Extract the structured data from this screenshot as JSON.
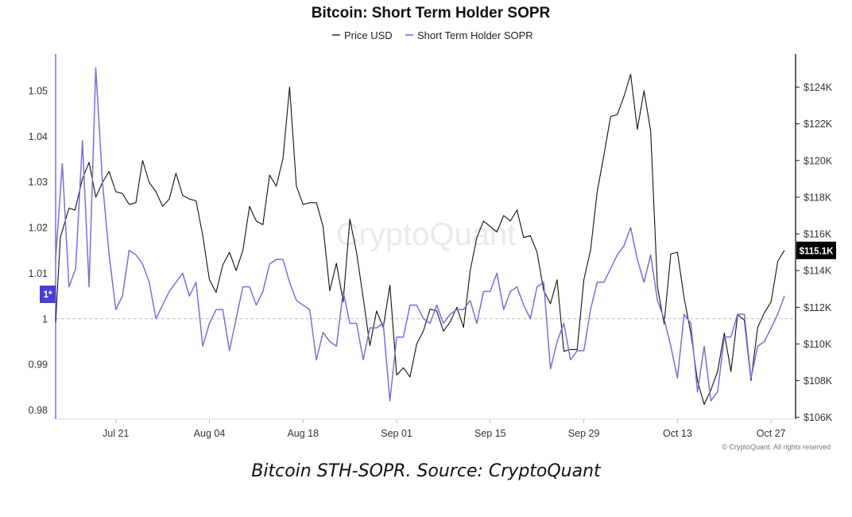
{
  "chart_data": {
    "type": "line",
    "title": "Bitcoin: Short Term Holder SOPR",
    "legend_position": "top-center",
    "grid": false,
    "reference_line": 1,
    "x_ticks": [
      "Jul 21",
      "Aug 04",
      "Aug 18",
      "Sep 01",
      "Sep 15",
      "Sep 29",
      "Oct 13",
      "Oct 27"
    ],
    "x_range": [
      "Jul 12",
      "Oct 28"
    ],
    "y_left": {
      "ylim": [
        0.978,
        1.058
      ],
      "ticks": [
        0.98,
        0.99,
        1,
        1.01,
        1.02,
        1.03,
        1.04,
        1.05
      ],
      "tick_labels": [
        "0.98",
        "0.99",
        "1",
        "1.01",
        "1.02",
        "1.03",
        "1.04",
        "1.05"
      ]
    },
    "y_right": {
      "ylim": [
        105900,
        125800
      ],
      "ticks": [
        106000,
        108000,
        110000,
        112000,
        114000,
        116000,
        118000,
        120000,
        122000,
        124000
      ],
      "tick_labels": [
        "$106K",
        "$108K",
        "$110K",
        "$112K",
        "$114K",
        "$116K",
        "$118K",
        "$120K",
        "$122K",
        "$124K"
      ]
    },
    "left_marker_label": "1*",
    "last_price_label": "$115.1K",
    "watermark": "CryptoQuant",
    "credit": "© CryptoQuant. All rights reserved",
    "series": [
      {
        "name": "Price USD",
        "color": "#111111",
        "axis": "right",
        "x": [
          0,
          0.7,
          2,
          2.9,
          4,
          5,
          6,
          7,
          8,
          9,
          10,
          11,
          12,
          13,
          14,
          15,
          16,
          17,
          18,
          19,
          20,
          21,
          22,
          23,
          24,
          25,
          26,
          27,
          28,
          29,
          30,
          31,
          32,
          33,
          34,
          35,
          36,
          37,
          38,
          39,
          40,
          41,
          42,
          43,
          44,
          45,
          46,
          47,
          48,
          49,
          50,
          51,
          52,
          53,
          54,
          55,
          56,
          57,
          58,
          59,
          60,
          61,
          62,
          63,
          64,
          65,
          66,
          67,
          68,
          69,
          70,
          71,
          72,
          73,
          74,
          75,
          76,
          77,
          78,
          79,
          80,
          81,
          82,
          83,
          84,
          85,
          86,
          87,
          88,
          89,
          90,
          91,
          92,
          93,
          94,
          95,
          96,
          97,
          98,
          99,
          100,
          101,
          102,
          103,
          104,
          105,
          106,
          107,
          108,
          109
        ],
        "values": [
          111200,
          115800,
          117400,
          117300,
          119000,
          119900,
          118000,
          118800,
          119400,
          118300,
          118200,
          117600,
          117700,
          120000,
          118800,
          118300,
          117500,
          117900,
          119300,
          118100,
          117900,
          117800,
          115900,
          113500,
          112800,
          114300,
          115000,
          114000,
          115100,
          117500,
          116700,
          116500,
          119200,
          118600,
          120100,
          124000,
          118600,
          117600,
          117700,
          117700,
          116400,
          112900,
          114400,
          112300,
          116800,
          115000,
          112500,
          109900,
          111800,
          110900,
          113200,
          108300,
          108700,
          108200,
          110000,
          110700,
          111900,
          111800,
          110700,
          111200,
          112000,
          110900,
          114000,
          115800,
          116700,
          116400,
          116100,
          117000,
          116700,
          117300,
          115800,
          115900,
          115000,
          112900,
          112200,
          113500,
          109600,
          109700,
          109700,
          113500,
          115100,
          118300,
          120300,
          122400,
          122500,
          123500,
          124700,
          121700,
          123800,
          121600,
          113100,
          111100,
          114900,
          115000,
          112500,
          110600,
          108000,
          106700,
          107500,
          108500,
          110600,
          108500,
          111600,
          111300,
          108000,
          110900,
          111700,
          112300,
          114500,
          115100
        ]
      },
      {
        "name": "Short Term Holder SOPR",
        "color": "#7b6fd6",
        "axis": "left",
        "x": [
          0,
          1,
          2,
          3,
          4,
          5,
          6,
          7,
          8,
          9,
          10,
          11,
          12,
          13,
          14,
          15,
          16,
          17,
          18,
          19,
          20,
          21,
          22,
          23,
          24,
          25,
          26,
          27,
          28,
          29,
          30,
          31,
          32,
          33,
          34,
          35,
          36,
          37,
          38,
          39,
          40,
          41,
          42,
          43,
          44,
          45,
          46,
          47,
          48,
          49,
          50,
          51,
          52,
          53,
          54,
          55,
          56,
          57,
          58,
          59,
          60,
          61,
          62,
          63,
          64,
          65,
          66,
          67,
          68,
          69,
          70,
          71,
          72,
          73,
          74,
          75,
          76,
          77,
          78,
          79,
          80,
          81,
          82,
          83,
          84,
          85,
          86,
          87,
          88,
          89,
          90,
          91,
          92,
          93,
          94,
          95,
          96,
          97,
          98,
          99,
          100,
          101,
          102,
          103,
          104,
          105,
          106,
          107,
          108,
          109
        ],
        "values": [
          1.013,
          1.034,
          1.007,
          1.011,
          1.039,
          1.007,
          1.055,
          1.03,
          1.014,
          1.002,
          1.005,
          1.015,
          1.014,
          1.012,
          1.008,
          1.0,
          1.003,
          1.006,
          1.008,
          1.01,
          1.005,
          1.008,
          0.994,
          0.999,
          1.002,
          1.002,
          0.993,
          1.0,
          1.007,
          1.007,
          1.003,
          1.006,
          1.012,
          1.013,
          1.013,
          1.008,
          1.004,
          1.003,
          1.002,
          0.991,
          0.997,
          0.995,
          0.994,
          1.006,
          0.999,
          0.999,
          0.991,
          0.998,
          0.998,
          0.999,
          0.982,
          0.996,
          0.996,
          1.003,
          1.003,
          1.0,
          0.999,
          1.003,
          0.999,
          1.001,
          1.002,
          1.002,
          1.004,
          0.999,
          1.006,
          1.006,
          1.01,
          1.002,
          1.006,
          1.007,
          1.003,
          1.0,
          1.007,
          1.008,
          0.989,
          0.995,
          0.999,
          0.991,
          0.993,
          0.993,
          1.002,
          1.008,
          1.008,
          1.011,
          1.014,
          1.016,
          1.02,
          1.013,
          1.008,
          1.014,
          1.004,
          1.0,
          0.994,
          0.987,
          1.001,
          0.999,
          0.984,
          0.994,
          0.982,
          0.984,
          0.996,
          0.996,
          1.001,
          1.001,
          0.987,
          0.994,
          0.995,
          0.998,
          1.001,
          1.005
        ]
      }
    ]
  },
  "caption": "Bitcoin STH-SOPR. Source: CryptoQuant"
}
